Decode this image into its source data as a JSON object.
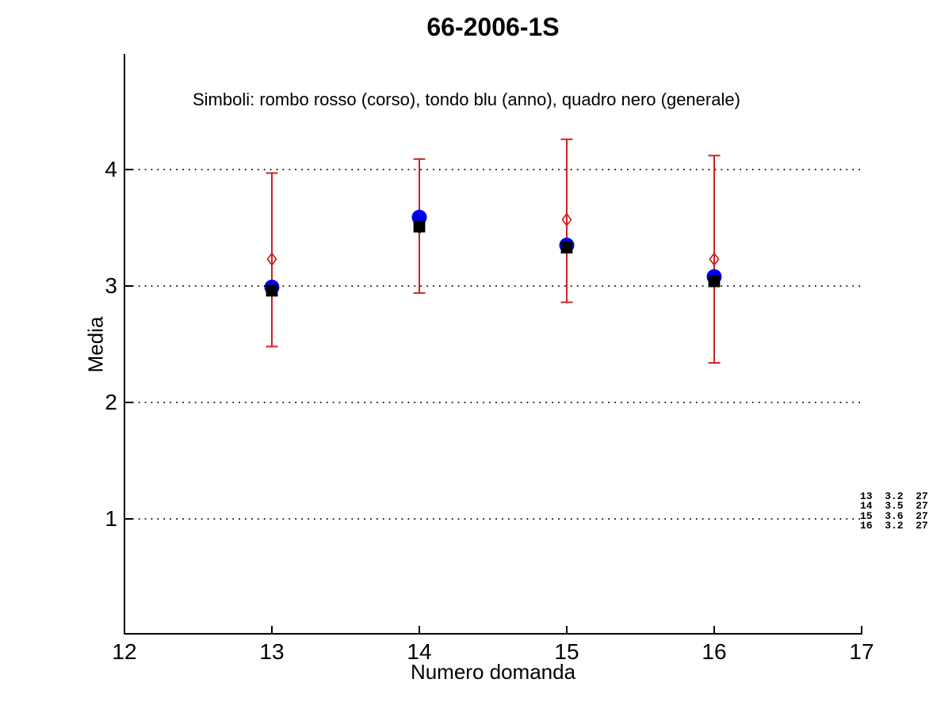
{
  "page": {
    "background": "#ffffff"
  },
  "chart_data": {
    "type": "scatter",
    "title": "66-2006-1S",
    "subtitle": "Simboli: rombo rosso (corso), tondo blu (anno), quadro nero (generale)",
    "xlabel": "Numero domanda",
    "ylabel": "Media",
    "xlim": [
      12,
      17
    ],
    "ylim": [
      0,
      5
    ],
    "xticks": [
      "12",
      "13",
      "14",
      "15",
      "16",
      "17"
    ],
    "yticks": [
      "1",
      "2",
      "3",
      "4"
    ],
    "grid": "horizontal dotted lines at y ticks",
    "legend_position": "none (symbols explained in subtitle text)",
    "x": [
      13,
      14,
      15,
      16
    ],
    "series": [
      {
        "name": "corso",
        "marker": "open-diamond",
        "color": "#cc2222",
        "values": [
          3.23,
          3.5,
          3.57,
          3.23
        ],
        "err_hi": [
          3.97,
          4.09,
          4.26,
          4.12
        ],
        "err_lo": [
          2.48,
          2.94,
          2.86,
          2.34
        ]
      },
      {
        "name": "anno",
        "marker": "filled-circle",
        "color": "#0000ee",
        "values": [
          2.99,
          3.59,
          3.35,
          3.08
        ]
      },
      {
        "name": "generale",
        "marker": "filled-square",
        "color": "#000000",
        "values": [
          2.96,
          3.51,
          3.33,
          3.04
        ]
      }
    ],
    "annotation_lines": [
      "13  3.2  27",
      "14  3.5  27",
      "15  3.6  27",
      "16  3.2  27"
    ],
    "axis_color": "#000000"
  }
}
